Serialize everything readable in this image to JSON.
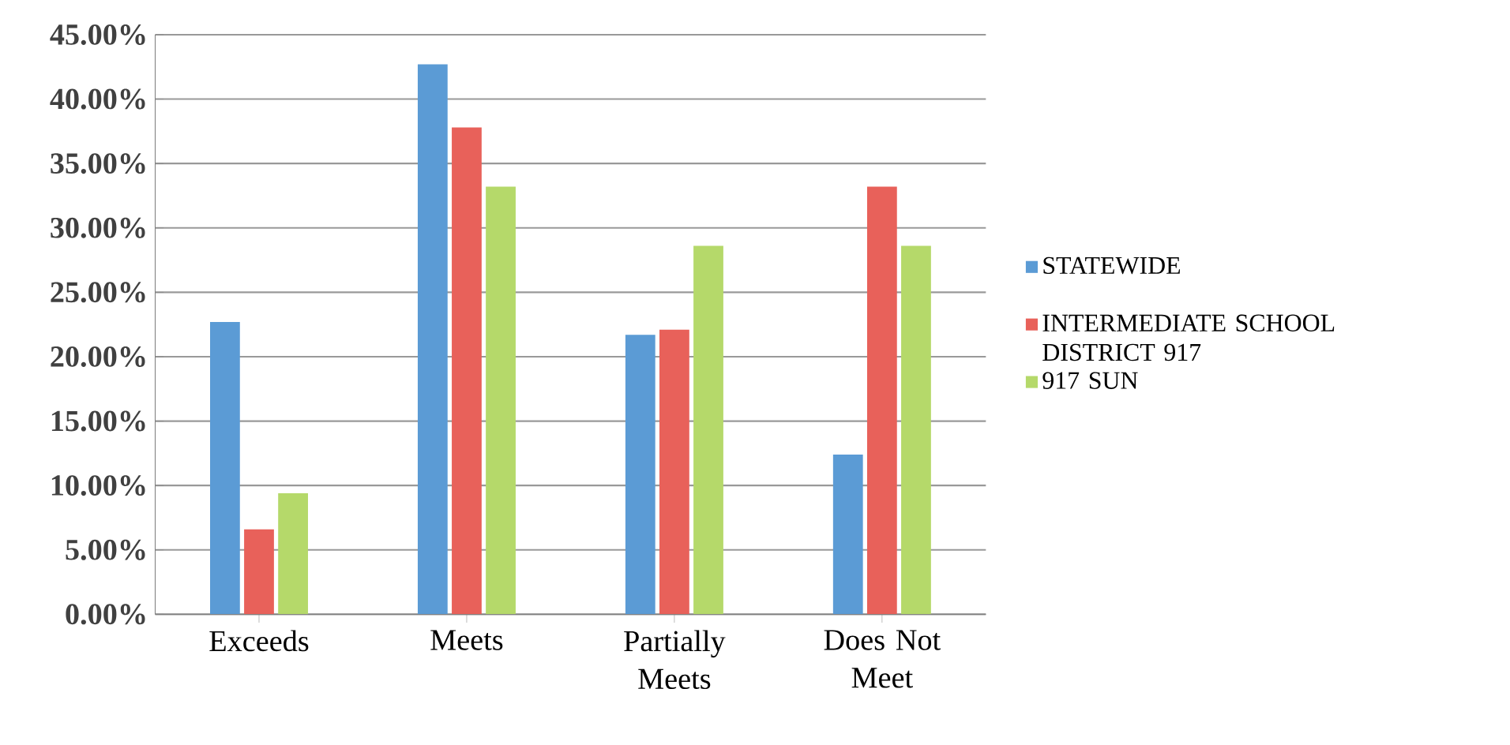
{
  "chart_data": {
    "type": "bar",
    "categories": [
      "Exceeds",
      "Meets",
      "Partially Meets",
      "Does Not Meet"
    ],
    "series": [
      {
        "name": "STATEWIDE",
        "color": "#5b9bd5",
        "values": [
          22.7,
          42.7,
          21.7,
          12.4
        ]
      },
      {
        "name": "INTERMEDIATE SCHOOL DISTRICT 917",
        "color": "#e8615a",
        "values": [
          6.6,
          37.8,
          22.1,
          33.2
        ]
      },
      {
        "name": "917 SUN",
        "color": "#b5d96a",
        "values": [
          9.4,
          33.2,
          28.6,
          28.6
        ]
      }
    ],
    "ylim": [
      0,
      45
    ],
    "yticks": [
      {
        "value": 0,
        "label": "0.00%"
      },
      {
        "value": 5,
        "label": "5.00%"
      },
      {
        "value": 10,
        "label": "10.00%"
      },
      {
        "value": 15,
        "label": "15.00%"
      },
      {
        "value": 20,
        "label": "20.00%"
      },
      {
        "value": 25,
        "label": "25.00%"
      },
      {
        "value": 30,
        "label": "30.00%"
      },
      {
        "value": 35,
        "label": "35.00%"
      },
      {
        "value": 40,
        "label": "40.00%"
      },
      {
        "value": 45,
        "label": "45.00%"
      }
    ],
    "grid": "y",
    "legend": "right"
  }
}
